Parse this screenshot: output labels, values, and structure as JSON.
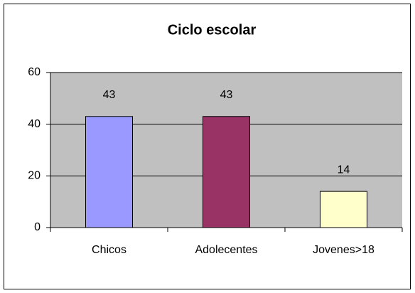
{
  "chart_data": {
    "type": "bar",
    "title": "Ciclo escolar",
    "categories": [
      "Chicos",
      "Adolecentes",
      "Jovenes>18"
    ],
    "values": [
      43,
      43,
      14
    ],
    "colors": [
      "#9999ff",
      "#993366",
      "#ffffcc"
    ],
    "ylim": [
      0,
      60
    ],
    "yticks": [
      0,
      20,
      40,
      60
    ],
    "grid": true
  }
}
